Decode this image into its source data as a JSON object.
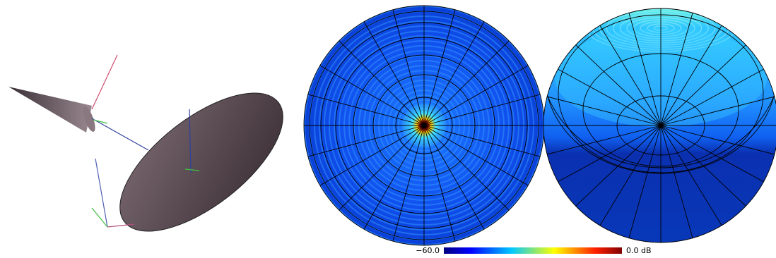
{
  "colorbar": {
    "min_label": "−60.0",
    "max_label": "0.0 dB"
  }
}
